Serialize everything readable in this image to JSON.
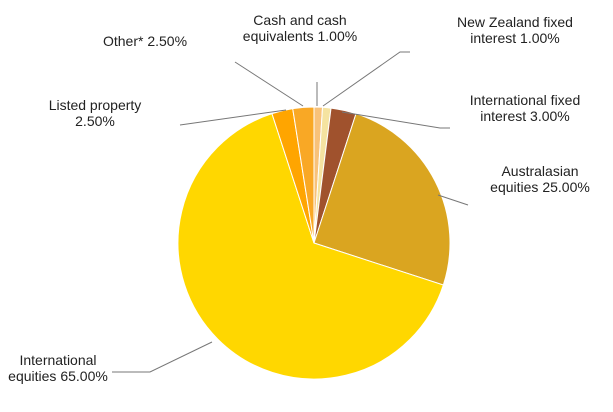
{
  "chart_data": {
    "type": "pie",
    "categories": [
      "Cash and cash equivalents",
      "New Zealand fixed interest",
      "International fixed interest",
      "Australasian equities",
      "International equities",
      "Listed property",
      "Other*"
    ],
    "values": [
      1.0,
      1.0,
      3.0,
      25.0,
      65.0,
      2.5,
      2.5
    ],
    "value_labels": [
      "1.00%",
      "1.00%",
      "3.00%",
      "25.00%",
      "65.00%",
      "2.50%",
      "2.50%"
    ],
    "colors": [
      "#f8c27a",
      "#f5e3a0",
      "#a0522d",
      "#daa520",
      "#ffd700",
      "#ffa500",
      "#f9a825"
    ]
  }
}
